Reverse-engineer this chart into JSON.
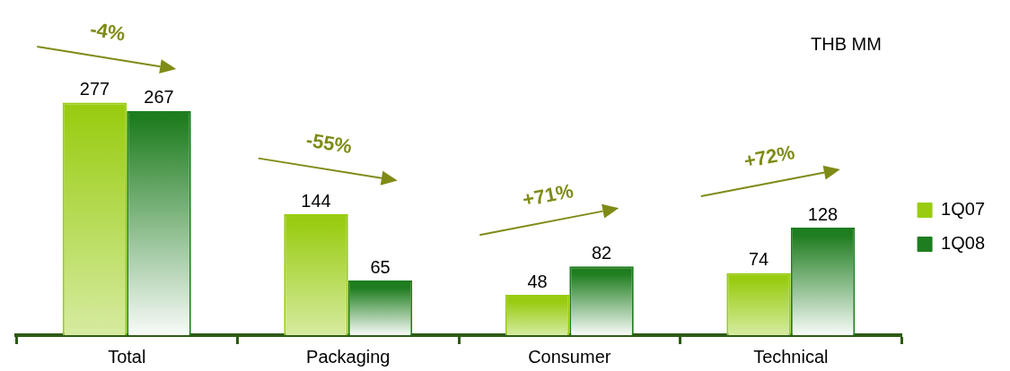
{
  "chart_data": {
    "type": "bar",
    "categories": [
      "Total",
      "Packaging",
      "Consumer",
      "Technical"
    ],
    "series": [
      {
        "name": "1Q07",
        "color": "#99cc11",
        "values": [
          277,
          144,
          48,
          74
        ]
      },
      {
        "name": "1Q08",
        "color": "#1e7d1e",
        "values": [
          267,
          65,
          82,
          128
        ]
      }
    ],
    "data_labels": true,
    "legend": "right",
    "grid": false,
    "annotations": [
      "THB MM",
      "-4%",
      "-55%",
      "+71%",
      "+72%"
    ]
  }
}
